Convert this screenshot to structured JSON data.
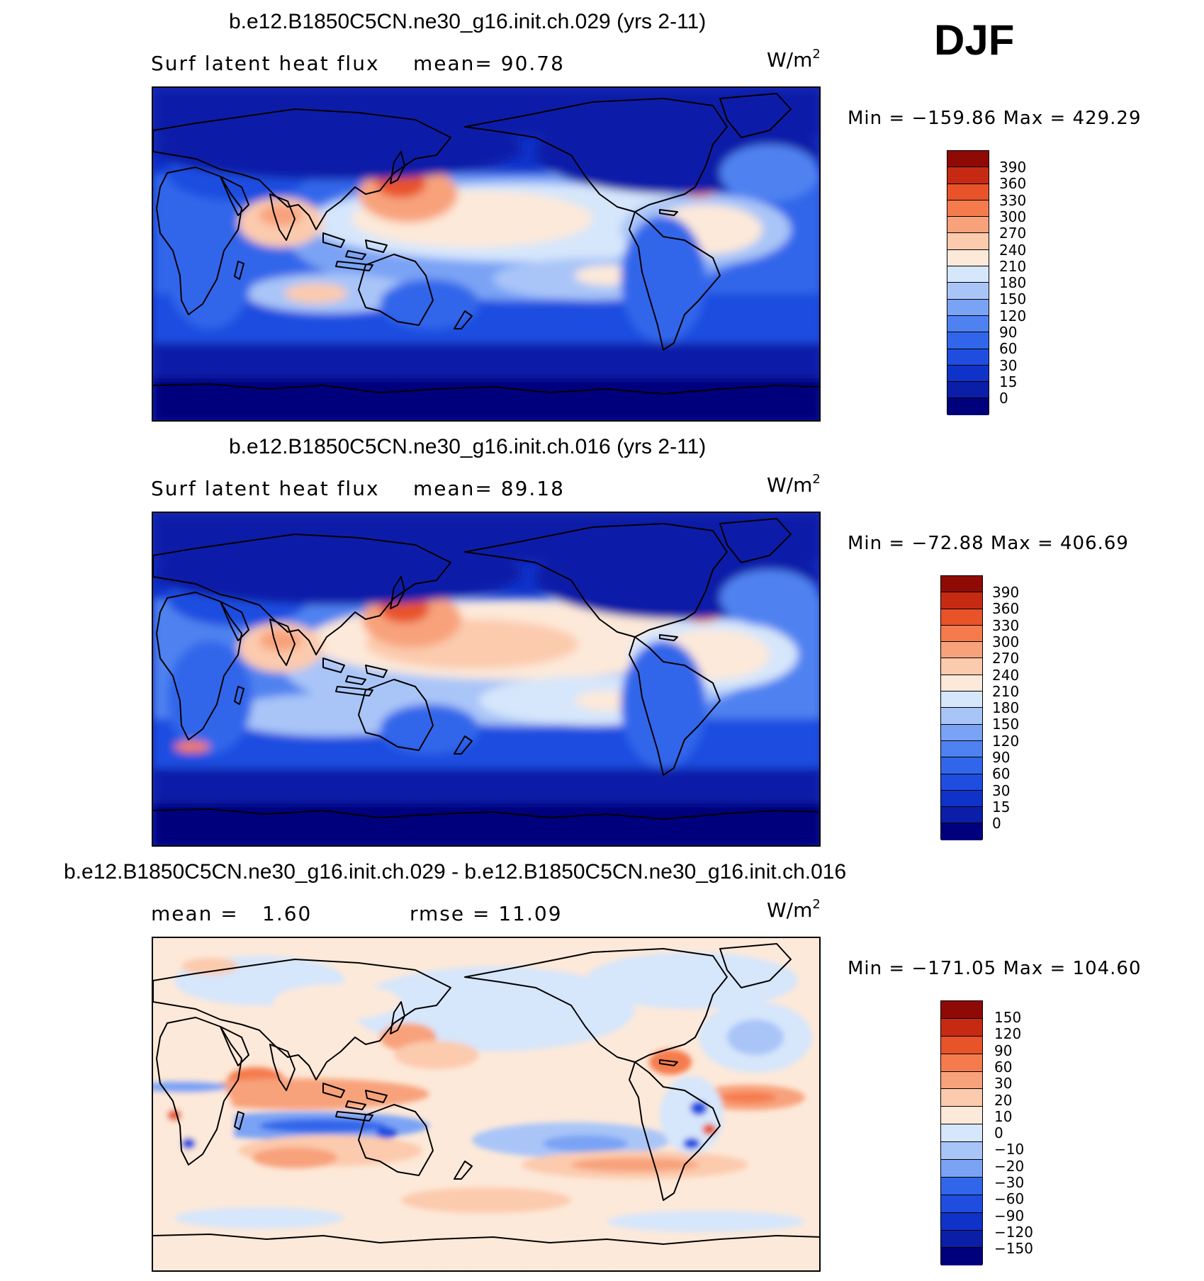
{
  "season": "DJF",
  "colors": {
    "main_scale": [
      "#00007d",
      "#0a1ea8",
      "#0f32c8",
      "#1e4de0",
      "#3266ea",
      "#4f82f0",
      "#7aa3f5",
      "#a9c5f8",
      "#d6e6fb",
      "#fde9d9",
      "#fccaad",
      "#f8a27b",
      "#f57b4d",
      "#e8532a",
      "#c72a13",
      "#8f0a05"
    ],
    "diff_scale": [
      "#00007d",
      "#0a1ea8",
      "#0f32c8",
      "#1e4de0",
      "#3266ea",
      "#7aa3f5",
      "#a9c5f8",
      "#d6e6fb",
      "#fde9d9",
      "#fccaad",
      "#f8a27b",
      "#f57b4d",
      "#e8532a",
      "#c72a13",
      "#8f0a05"
    ],
    "coastline": "#000000"
  },
  "panels": [
    {
      "title": "b.e12.B1850C5CN.ne30_g16.init.ch.029 (yrs 2-11)",
      "field": "Surf latent heat flux",
      "stat1": "mean=   90.78",
      "stat2": "",
      "units": "W/m",
      "units_sup": "2",
      "minmax": "Min = −159.86 Max = 429.29",
      "colorbar_levels": [
        "390",
        "360",
        "330",
        "300",
        "270",
        "240",
        "210",
        "180",
        "150",
        "120",
        "90",
        "60",
        "30",
        "15",
        "0"
      ]
    },
    {
      "title": "b.e12.B1850C5CN.ne30_g16.init.ch.016 (yrs 2-11)",
      "field": "Surf latent heat flux",
      "stat1": "mean=   89.18",
      "stat2": "",
      "units": "W/m",
      "units_sup": "2",
      "minmax": "Min = −72.88 Max = 406.69",
      "colorbar_levels": [
        "390",
        "360",
        "330",
        "300",
        "270",
        "240",
        "210",
        "180",
        "150",
        "120",
        "90",
        "60",
        "30",
        "15",
        "0"
      ]
    },
    {
      "title": "b.e12.B1850C5CN.ne30_g16.init.ch.029 - b.e12.B1850C5CN.ne30_g16.init.ch.016",
      "field": "mean =",
      "stat1": "1.60",
      "stat2": "rmse =   11.09",
      "units": "W/m",
      "units_sup": "2",
      "minmax": "Min = −171.05 Max = 104.60",
      "colorbar_levels": [
        "150",
        "120",
        "90",
        "60",
        "30",
        "20",
        "10",
        "0",
        "−10",
        "−20",
        "−30",
        "−60",
        "−90",
        "−120",
        "−150"
      ]
    }
  ]
}
